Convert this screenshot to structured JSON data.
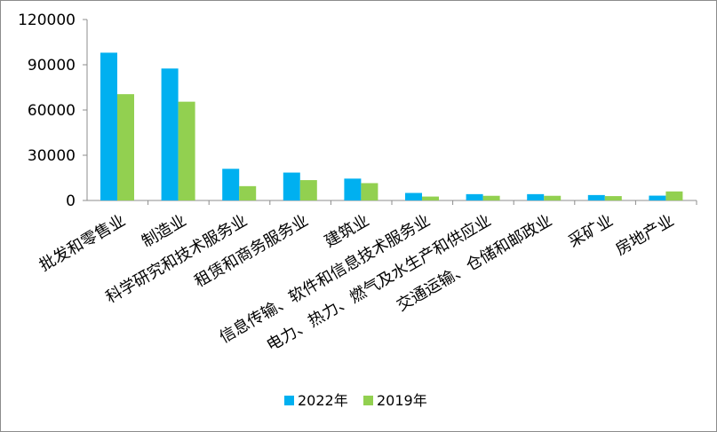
{
  "chart_data": {
    "type": "bar",
    "title": "",
    "xlabel": "",
    "ylabel": "",
    "ylim": [
      0,
      120000
    ],
    "yticks": [
      0,
      30000,
      60000,
      90000,
      120000
    ],
    "grid": false,
    "legend_position": "bottom",
    "categories": [
      "批发和零售业",
      "制造业",
      "科学研究和技术服务业",
      "租赁和商务服务业",
      "建筑业",
      "信息传输、软件和信息技术服务业",
      "电力、热力、燃气及水生产和供应业",
      "交通运输、仓储和邮政业",
      "采矿业",
      "房地产业"
    ],
    "series": [
      {
        "name": "2022年",
        "color": "#00B0F0",
        "values": [
          98000,
          87500,
          21000,
          18500,
          14500,
          5000,
          4200,
          4200,
          3600,
          3200
        ]
      },
      {
        "name": "2019年",
        "color": "#92D050",
        "values": [
          70500,
          65500,
          9500,
          13500,
          11500,
          2600,
          3100,
          3100,
          2900,
          6000
        ]
      }
    ]
  }
}
